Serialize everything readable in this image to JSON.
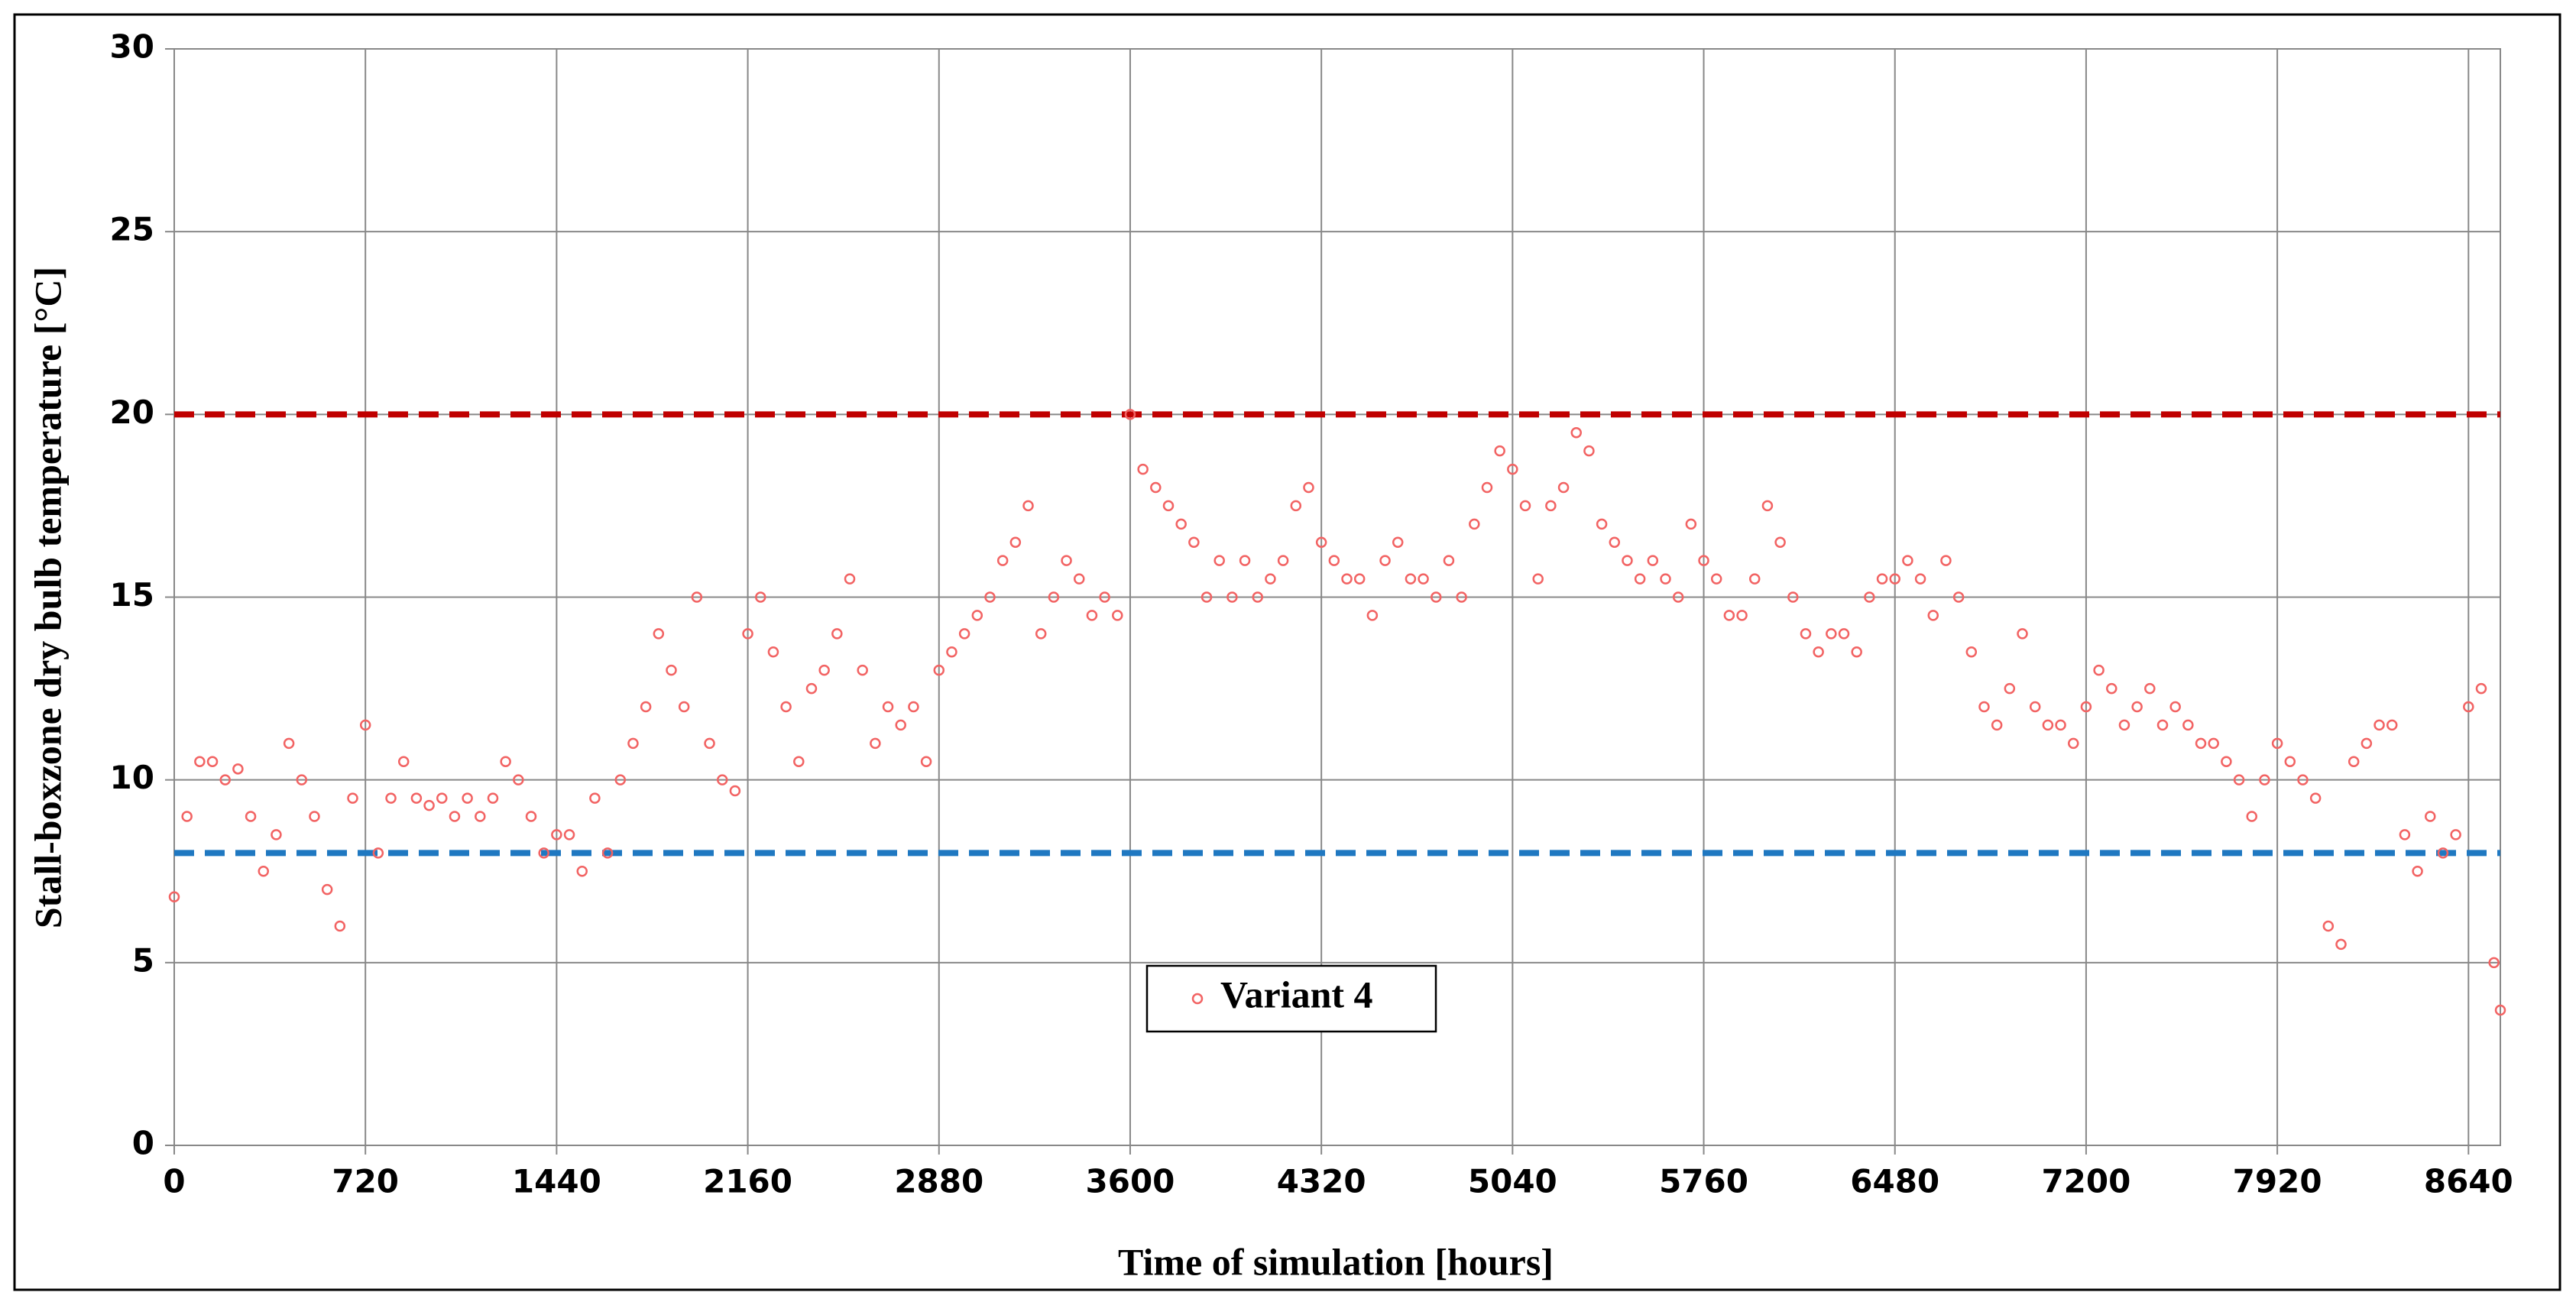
{
  "chart_data": {
    "type": "scatter",
    "x_label": "Time of simulation [hours]",
    "y_label": "Stall-boxzone dry bulb temperature [°C]",
    "xlim": [
      0,
      8760
    ],
    "ylim": [
      0,
      30
    ],
    "xticks": [
      0,
      720,
      1440,
      2160,
      2880,
      3600,
      4320,
      5040,
      5760,
      6480,
      7200,
      7920,
      8640
    ],
    "yticks": [
      0,
      5,
      10,
      15,
      20,
      25,
      30
    ],
    "grid": true,
    "legend": "bottom-center",
    "reference_lines": [
      {
        "value": 20,
        "color": "#c00000"
      },
      {
        "value": 8,
        "color": "#1f78c1"
      }
    ],
    "series": [
      {
        "name": "Variant 4",
        "color": "#f26363",
        "x": [
          0,
          48,
          96,
          144,
          192,
          240,
          288,
          336,
          384,
          432,
          480,
          528,
          576,
          624,
          672,
          720,
          768,
          816,
          864,
          912,
          960,
          1008,
          1056,
          1104,
          1152,
          1200,
          1248,
          1296,
          1344,
          1392,
          1440,
          1488,
          1536,
          1584,
          1632,
          1680,
          1728,
          1776,
          1824,
          1872,
          1920,
          1968,
          2016,
          2064,
          2112,
          2160,
          2208,
          2256,
          2304,
          2352,
          2400,
          2448,
          2496,
          2544,
          2592,
          2640,
          2688,
          2736,
          2784,
          2832,
          2880,
          2928,
          2976,
          3024,
          3072,
          3120,
          3168,
          3216,
          3264,
          3312,
          3360,
          3408,
          3456,
          3504,
          3552,
          3600,
          3648,
          3696,
          3744,
          3792,
          3840,
          3888,
          3936,
          3984,
          4032,
          4080,
          4128,
          4176,
          4224,
          4272,
          4320,
          4368,
          4416,
          4464,
          4512,
          4560,
          4608,
          4656,
          4704,
          4752,
          4800,
          4848,
          4896,
          4944,
          4992,
          5040,
          5088,
          5136,
          5184,
          5232,
          5280,
          5328,
          5376,
          5424,
          5472,
          5520,
          5568,
          5616,
          5664,
          5712,
          5760,
          5808,
          5856,
          5904,
          5952,
          6000,
          6048,
          6096,
          6144,
          6192,
          6240,
          6288,
          6336,
          6384,
          6432,
          6480,
          6528,
          6576,
          6624,
          6672,
          6720,
          6768,
          6816,
          6864,
          6912,
          6960,
          7008,
          7056,
          7104,
          7152,
          7200,
          7248,
          7296,
          7344,
          7392,
          7440,
          7488,
          7536,
          7584,
          7632,
          7680,
          7728,
          7776,
          7824,
          7872,
          7920,
          7968,
          8016,
          8064,
          8112,
          8160,
          8208,
          8256,
          8304,
          8352,
          8400,
          8448,
          8496,
          8544,
          8592,
          8640,
          8688,
          8736,
          8760
        ],
        "values": [
          6.8,
          9,
          10.5,
          10.5,
          10,
          10.3,
          9,
          7.5,
          8.5,
          11,
          10,
          9,
          7,
          6,
          9.5,
          11.5,
          8,
          9.5,
          10.5,
          9.5,
          9.3,
          9.5,
          9,
          9.5,
          9,
          9.5,
          10.5,
          10,
          9,
          8,
          8.5,
          8.5,
          7.5,
          9.5,
          8,
          10,
          11,
          12,
          14,
          13,
          12,
          15,
          11,
          10,
          9.7,
          14,
          15,
          13.5,
          12,
          10.5,
          12.5,
          13,
          14,
          15.5,
          13,
          11,
          12,
          11.5,
          12,
          10.5,
          13,
          13.5,
          14,
          14.5,
          15,
          16,
          16.5,
          17.5,
          14,
          15,
          16,
          15.5,
          14.5,
          15,
          14.5,
          20,
          18.5,
          18,
          17.5,
          17,
          16.5,
          15,
          16,
          15,
          16,
          15,
          15.5,
          16,
          17.5,
          18,
          16.5,
          16,
          15.5,
          15.5,
          14.5,
          16,
          16.5,
          15.5,
          15.5,
          15,
          16,
          15,
          17,
          18,
          19,
          18.5,
          17.5,
          15.5,
          17.5,
          18,
          19.5,
          19,
          17,
          16.5,
          16,
          15.5,
          16,
          15.5,
          15,
          17,
          16,
          15.5,
          14.5,
          14.5,
          15.5,
          17.5,
          16.5,
          15,
          14,
          13.5,
          14,
          14,
          13.5,
          15,
          15.5,
          15.5,
          16,
          15.5,
          14.5,
          16,
          15,
          13.5,
          12,
          11.5,
          12.5,
          14,
          12,
          11.5,
          11.5,
          11,
          12,
          13,
          12.5,
          11.5,
          12,
          12.5,
          11.5,
          12,
          11.5,
          11,
          11,
          10.5,
          10,
          9,
          10,
          11,
          10.5,
          10,
          9.5,
          6,
          5.5,
          10.5,
          11,
          11.5,
          11.5,
          8.5,
          7.5,
          9,
          8,
          8.5,
          12,
          12.5,
          5,
          3.7
        ]
      }
    ]
  }
}
